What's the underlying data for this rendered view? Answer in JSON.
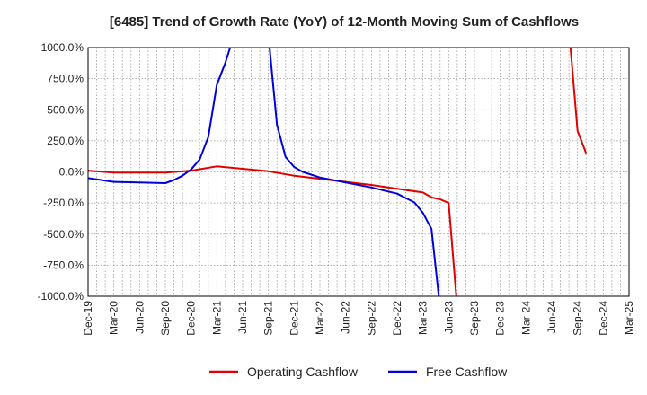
{
  "chart_data": {
    "type": "line",
    "title": "[6485]  Trend of Growth Rate (YoY) of 12-Month Moving Sum of Cashflows",
    "xlabel": "",
    "ylabel": "",
    "ylim": [
      -1000,
      1000
    ],
    "y_ticks": [
      1000,
      750,
      500,
      250,
      0,
      -250,
      -500,
      -750,
      -1000
    ],
    "y_tick_labels": [
      "1000.0%",
      "750.0%",
      "500.0%",
      "250.0%",
      "0.0%",
      "-250.0%",
      "-500.0%",
      "-750.0%",
      "-1000.0%"
    ],
    "x_range": [
      "2019-12",
      "2025-03"
    ],
    "x_tick_labels": [
      "Dec-19",
      "Mar-20",
      "Jun-20",
      "Sep-20",
      "Dec-20",
      "Mar-21",
      "Jun-21",
      "Sep-21",
      "Dec-21",
      "Mar-22",
      "Jun-22",
      "Sep-22",
      "Dec-22",
      "Mar-23",
      "Jun-23",
      "Sep-23",
      "Dec-23",
      "Mar-24",
      "Jun-24",
      "Sep-24",
      "Dec-24",
      "Mar-25"
    ],
    "grid": true,
    "legend_position": "bottom",
    "series": [
      {
        "name": "Operating Cashflow",
        "color": "#e00000",
        "points": [
          [
            "2019-12",
            10
          ],
          [
            "2020-03",
            -5
          ],
          [
            "2020-06",
            -5
          ],
          [
            "2020-09",
            -5
          ],
          [
            "2020-12",
            10
          ],
          [
            "2021-03",
            45
          ],
          [
            "2021-06",
            25
          ],
          [
            "2021-09",
            5
          ],
          [
            "2021-12",
            -30
          ],
          [
            "2022-03",
            -55
          ],
          [
            "2022-06",
            -80
          ],
          [
            "2022-09",
            -105
          ],
          [
            "2022-12",
            -135
          ],
          [
            "2023-03",
            -165
          ],
          [
            "2023-04",
            -205
          ],
          [
            "2023-05",
            -220
          ],
          [
            "2023-06",
            -250
          ],
          [
            "2023-07",
            -1100
          ]
        ],
        "segment_2": [
          [
            "2024-08",
            1150
          ],
          [
            "2024-09",
            330
          ],
          [
            "2024-10",
            150
          ]
        ]
      },
      {
        "name": "Free Cashflow",
        "color": "#0000dd",
        "points": [
          [
            "2019-12",
            -50
          ],
          [
            "2020-03",
            -80
          ],
          [
            "2020-06",
            -85
          ],
          [
            "2020-09",
            -90
          ],
          [
            "2020-10",
            -65
          ],
          [
            "2020-11",
            -30
          ],
          [
            "2020-12",
            20
          ],
          [
            "2021-01",
            100
          ],
          [
            "2021-02",
            280
          ],
          [
            "2021-03",
            700
          ],
          [
            "2021-04",
            880
          ],
          [
            "2021-05",
            1100
          ]
        ],
        "segment_2": [
          [
            "2021-09",
            1100
          ],
          [
            "2021-10",
            380
          ],
          [
            "2021-11",
            120
          ],
          [
            "2021-12",
            40
          ],
          [
            "2022-01",
            0
          ],
          [
            "2022-03",
            -45
          ],
          [
            "2022-06",
            -85
          ],
          [
            "2022-09",
            -125
          ],
          [
            "2022-12",
            -175
          ],
          [
            "2023-01",
            -210
          ],
          [
            "2023-02",
            -245
          ],
          [
            "2023-03",
            -330
          ],
          [
            "2023-04",
            -460
          ],
          [
            "2023-05",
            -1100
          ]
        ]
      }
    ]
  }
}
